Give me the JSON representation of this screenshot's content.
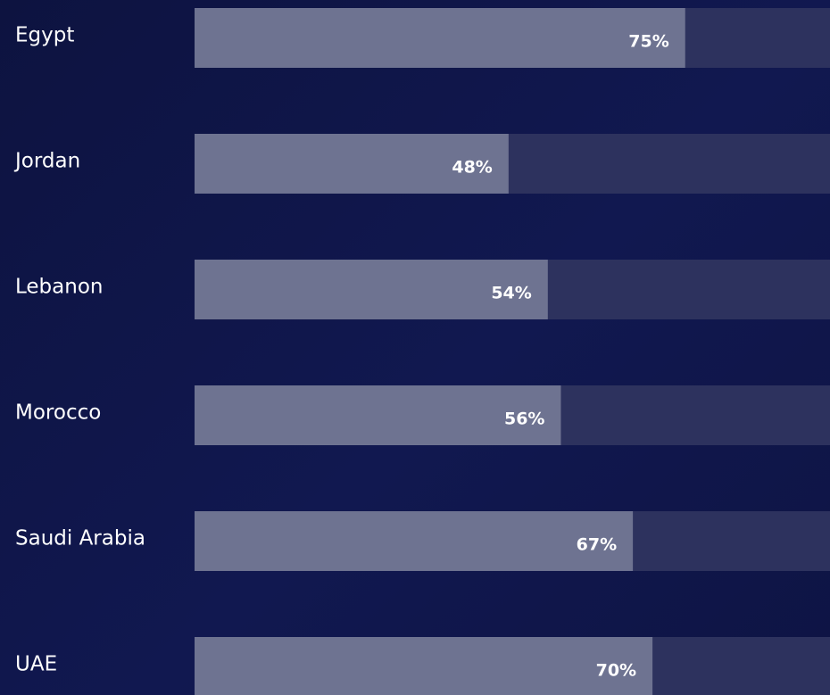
{
  "chart_data": {
    "type": "bar",
    "categories": [
      "Egypt",
      "Jordan",
      "Lebanon",
      "Morocco",
      "Saudi Arabia",
      "UAE"
    ],
    "values": [
      75,
      48,
      54,
      56,
      67,
      70
    ],
    "value_labels": [
      "75%",
      "48%",
      "54%",
      "56%",
      "67%",
      "70%"
    ],
    "color": "#6e7391",
    "xlim": [
      0,
      100
    ]
  }
}
